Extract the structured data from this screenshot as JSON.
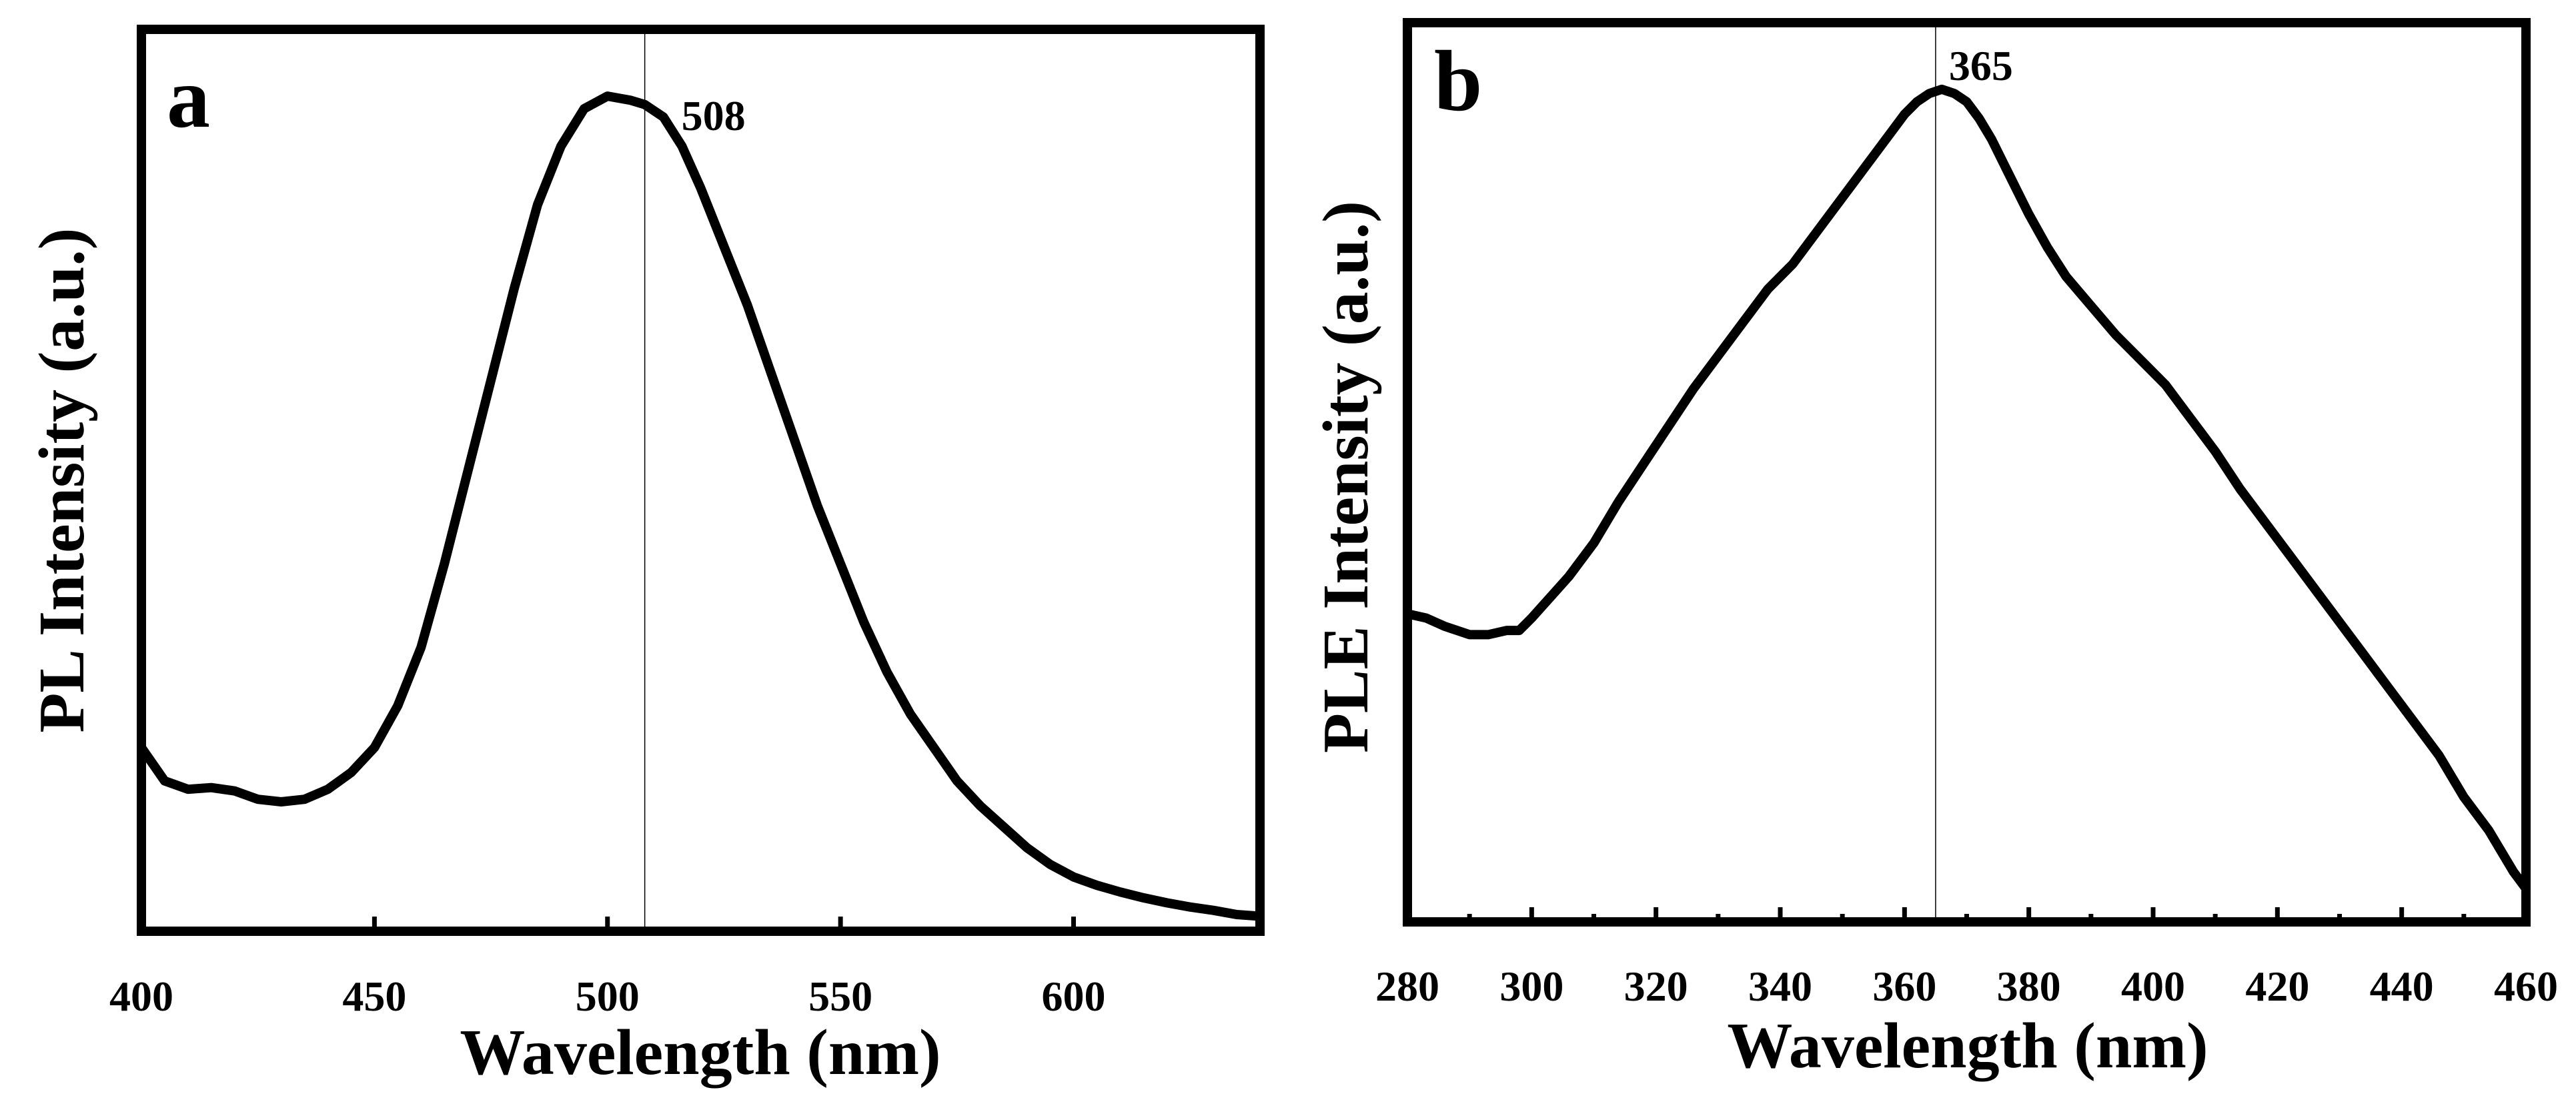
{
  "chart_data": [
    {
      "type": "line",
      "panel_letter": "a",
      "xlabel": "Wavelength (nm)",
      "ylabel": "PL Intensity (a.u.)",
      "xlim": [
        400,
        640
      ],
      "ylim": [
        0,
        1.08
      ],
      "xticks": [
        400,
        450,
        500,
        550,
        600
      ],
      "xtick_labels": [
        "400",
        "450",
        "500",
        "550",
        "600"
      ],
      "minor_xticks": [],
      "peak": {
        "x": 508,
        "label": "508"
      },
      "series": [
        {
          "name": "PL",
          "x": [
            400,
            405,
            410,
            415,
            420,
            425,
            430,
            435,
            440,
            445,
            450,
            455,
            460,
            465,
            470,
            475,
            480,
            485,
            490,
            495,
            500,
            505,
            508,
            512,
            516,
            520,
            525,
            530,
            535,
            540,
            545,
            550,
            555,
            560,
            565,
            570,
            575,
            580,
            585,
            590,
            595,
            600,
            605,
            610,
            615,
            620,
            625,
            630,
            635,
            640
          ],
          "y": [
            0.22,
            0.18,
            0.17,
            0.172,
            0.168,
            0.158,
            0.155,
            0.158,
            0.17,
            0.19,
            0.22,
            0.27,
            0.34,
            0.44,
            0.55,
            0.66,
            0.77,
            0.87,
            0.94,
            0.985,
            1.0,
            0.995,
            0.99,
            0.975,
            0.94,
            0.89,
            0.82,
            0.75,
            0.67,
            0.59,
            0.51,
            0.44,
            0.37,
            0.31,
            0.26,
            0.22,
            0.18,
            0.15,
            0.125,
            0.1,
            0.08,
            0.065,
            0.055,
            0.047,
            0.04,
            0.034,
            0.029,
            0.025,
            0.02,
            0.018
          ]
        }
      ]
    },
    {
      "type": "line",
      "panel_letter": "b",
      "xlabel": "Wavelength (nm)",
      "ylabel": "PLE Intensity (a.u.)",
      "xlim": [
        280,
        460
      ],
      "ylim": [
        0,
        1.08
      ],
      "xticks": [
        280,
        300,
        320,
        340,
        360,
        380,
        400,
        420,
        440,
        460
      ],
      "xtick_labels": [
        "280",
        "300",
        "320",
        "340",
        "360",
        "380",
        "400",
        "420",
        "440",
        "460"
      ],
      "minor_xticks": [
        290,
        310,
        330,
        350,
        370,
        390,
        410,
        430,
        450
      ],
      "peak": {
        "x": 365,
        "label": "365"
      },
      "series": [
        {
          "name": "PLE",
          "x": [
            280,
            283,
            286,
            290,
            293,
            296,
            298,
            300,
            303,
            306,
            310,
            314,
            318,
            322,
            326,
            330,
            334,
            338,
            342,
            346,
            350,
            354,
            358,
            360,
            362,
            364,
            366,
            368,
            370,
            372,
            374,
            376,
            378,
            380,
            383,
            386,
            390,
            394,
            398,
            402,
            406,
            410,
            414,
            418,
            422,
            426,
            430,
            434,
            438,
            442,
            446,
            450,
            454,
            458,
            460
          ],
          "y": [
            0.37,
            0.365,
            0.355,
            0.345,
            0.345,
            0.35,
            0.35,
            0.365,
            0.39,
            0.415,
            0.455,
            0.505,
            0.55,
            0.595,
            0.64,
            0.68,
            0.72,
            0.76,
            0.79,
            0.83,
            0.87,
            0.91,
            0.95,
            0.97,
            0.985,
            0.995,
            1.0,
            0.995,
            0.985,
            0.965,
            0.94,
            0.91,
            0.88,
            0.85,
            0.81,
            0.775,
            0.74,
            0.705,
            0.675,
            0.645,
            0.605,
            0.565,
            0.52,
            0.48,
            0.44,
            0.4,
            0.36,
            0.32,
            0.28,
            0.24,
            0.2,
            0.15,
            0.11,
            0.06,
            0.04
          ]
        }
      ]
    }
  ]
}
